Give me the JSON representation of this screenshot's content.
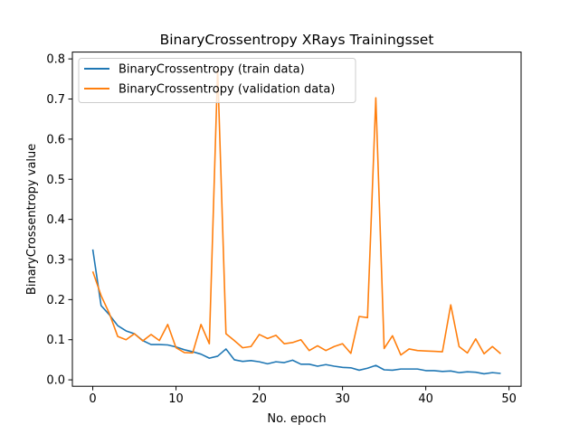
{
  "chart_data": {
    "type": "line",
    "title": "BinaryCrossentropy XRays Trainingsset",
    "xlabel": "No. epoch",
    "ylabel": "BinaryCrossentropy value",
    "xlim": [
      -2.45,
      51.45
    ],
    "ylim": [
      -0.016,
      0.817
    ],
    "xticks": [
      0,
      10,
      20,
      30,
      40,
      50
    ],
    "yticks": [
      0.0,
      0.1,
      0.2,
      0.3,
      0.4,
      0.5,
      0.6,
      0.7,
      0.8
    ],
    "grid": false,
    "legend_position": "upper-left",
    "x": [
      0,
      1,
      2,
      3,
      4,
      5,
      6,
      7,
      8,
      9,
      10,
      11,
      12,
      13,
      14,
      15,
      16,
      17,
      18,
      19,
      20,
      21,
      22,
      23,
      24,
      25,
      26,
      27,
      28,
      29,
      30,
      31,
      32,
      33,
      34,
      35,
      36,
      37,
      38,
      39,
      40,
      41,
      42,
      43,
      44,
      45,
      46,
      47,
      48,
      49
    ],
    "series": [
      {
        "name": "BinaryCrossentropy (train data)",
        "color": "#1f77b4",
        "values": [
          0.325,
          0.185,
          0.162,
          0.135,
          0.122,
          0.115,
          0.098,
          0.088,
          0.088,
          0.087,
          0.082,
          0.075,
          0.07,
          0.064,
          0.054,
          0.059,
          0.077,
          0.05,
          0.046,
          0.048,
          0.045,
          0.04,
          0.045,
          0.043,
          0.049,
          0.039,
          0.039,
          0.034,
          0.038,
          0.034,
          0.031,
          0.03,
          0.024,
          0.029,
          0.036,
          0.025,
          0.024,
          0.027,
          0.027,
          0.027,
          0.023,
          0.023,
          0.021,
          0.022,
          0.018,
          0.02,
          0.019,
          0.015,
          0.018,
          0.016
        ]
      },
      {
        "name": "BinaryCrossentropy (validation data)",
        "color": "#ff7f0e",
        "values": [
          0.27,
          0.21,
          0.165,
          0.108,
          0.1,
          0.115,
          0.097,
          0.113,
          0.098,
          0.138,
          0.08,
          0.068,
          0.067,
          0.138,
          0.09,
          0.775,
          0.115,
          0.098,
          0.08,
          0.083,
          0.113,
          0.103,
          0.111,
          0.09,
          0.093,
          0.1,
          0.073,
          0.085,
          0.073,
          0.083,
          0.09,
          0.066,
          0.158,
          0.155,
          0.703,
          0.078,
          0.11,
          0.062,
          0.077,
          0.073,
          0.072,
          0.071,
          0.07,
          0.187,
          0.083,
          0.067,
          0.102,
          0.065,
          0.083,
          0.065
        ]
      }
    ]
  }
}
